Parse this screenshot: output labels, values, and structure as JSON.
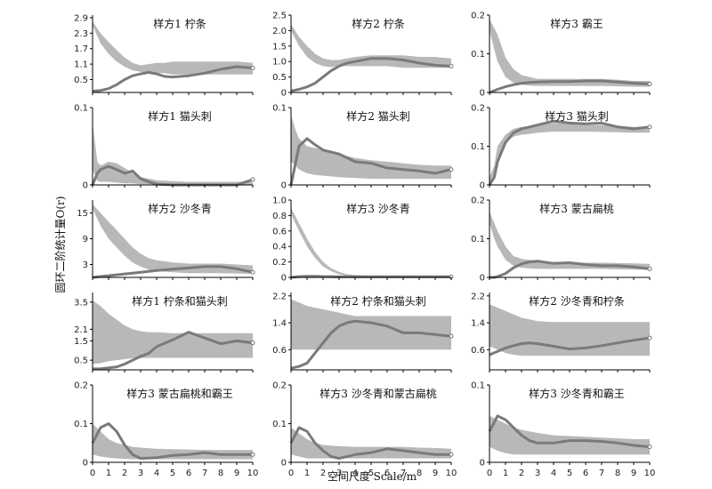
{
  "figure": {
    "xlabel": "空间尺度 Scale/m",
    "ylabel": "圆环二阶统计量O(r)"
  },
  "colors": {
    "envelope": "#b8b8b8",
    "observed": "#7a7a7a",
    "axis": "#000000"
  },
  "chart_data": [
    {
      "type": "area+line",
      "title": "样方1 柠条",
      "ylim": [
        0,
        3.0
      ],
      "yticks": [
        "2.9",
        "2.3",
        "1.7",
        "1.1",
        "0.5"
      ],
      "ytick_values": [
        2.9,
        2.3,
        1.7,
        1.1,
        0.5
      ],
      "xlim": [
        0,
        10
      ],
      "x": [
        0,
        0.5,
        1,
        1.5,
        2,
        2.5,
        3,
        3.5,
        4,
        4.5,
        5,
        6,
        7,
        8,
        9,
        10
      ],
      "upper": [
        2.75,
        2.3,
        1.95,
        1.65,
        1.35,
        1.15,
        1.05,
        1.1,
        1.15,
        1.15,
        1.2,
        1.2,
        1.2,
        1.2,
        1.2,
        1.15
      ],
      "lower": [
        2.6,
        1.9,
        1.5,
        1.2,
        1.0,
        0.85,
        0.8,
        0.75,
        0.75,
        0.75,
        0.7,
        0.7,
        0.7,
        0.7,
        0.7,
        0.7
      ],
      "observed": [
        0.05,
        0.08,
        0.15,
        0.3,
        0.5,
        0.65,
        0.72,
        0.78,
        0.72,
        0.62,
        0.6,
        0.65,
        0.75,
        0.9,
        1.0,
        0.95
      ]
    },
    {
      "type": "area+line",
      "title": "样方2 柠条",
      "ylim": [
        0,
        2.5
      ],
      "yticks": [
        "2.5",
        "2.0",
        "1.5",
        "1.0",
        "0.5",
        "0"
      ],
      "ytick_values": [
        2.5,
        2.0,
        1.5,
        1.0,
        0.5,
        0
      ],
      "xlim": [
        0,
        10
      ],
      "x": [
        0,
        0.5,
        1,
        1.5,
        2,
        2.5,
        3,
        3.5,
        4,
        5,
        6,
        7,
        8,
        9,
        10
      ],
      "upper": [
        2.2,
        1.8,
        1.5,
        1.25,
        1.1,
        1.05,
        1.05,
        1.1,
        1.15,
        1.2,
        1.2,
        1.2,
        1.15,
        1.15,
        1.1
      ],
      "lower": [
        2.0,
        1.5,
        1.15,
        0.95,
        0.85,
        0.82,
        0.85,
        0.85,
        0.85,
        0.85,
        0.85,
        0.8,
        0.8,
        0.8,
        0.8
      ],
      "observed": [
        0.05,
        0.1,
        0.18,
        0.3,
        0.5,
        0.7,
        0.85,
        0.95,
        1.0,
        1.1,
        1.1,
        1.05,
        0.95,
        0.88,
        0.85
      ]
    },
    {
      "type": "area+line",
      "title": "样方3 霸王",
      "ylim": [
        0,
        0.2
      ],
      "yticks": [
        "0.2",
        "0.1",
        "0"
      ],
      "ytick_values": [
        0.2,
        0.1,
        0
      ],
      "xlim": [
        0,
        10
      ],
      "x": [
        0,
        0.5,
        1,
        1.5,
        2,
        2.5,
        3,
        4,
        5,
        6,
        7,
        8,
        9,
        10
      ],
      "upper": [
        0.19,
        0.15,
        0.09,
        0.06,
        0.045,
        0.04,
        0.035,
        0.035,
        0.035,
        0.035,
        0.035,
        0.033,
        0.03,
        0.03
      ],
      "lower": [
        0.16,
        0.08,
        0.04,
        0.025,
        0.02,
        0.018,
        0.017,
        0.017,
        0.017,
        0.017,
        0.017,
        0.016,
        0.015,
        0.015
      ],
      "observed": [
        0.0,
        0.008,
        0.015,
        0.02,
        0.024,
        0.026,
        0.027,
        0.028,
        0.028,
        0.03,
        0.03,
        0.027,
        0.024,
        0.022
      ]
    },
    {
      "type": "area+line",
      "title": "样方1 猫头刺",
      "ylim": [
        0,
        0.1
      ],
      "yticks": [
        "0.1",
        "0"
      ],
      "ytick_values": [
        0.1,
        0
      ],
      "xlim": [
        0,
        10
      ],
      "x": [
        0,
        0.3,
        0.5,
        1,
        1.5,
        2,
        2.5,
        3,
        3.5,
        4,
        5,
        6,
        7,
        8,
        9,
        10
      ],
      "upper": [
        0.08,
        0.03,
        0.025,
        0.03,
        0.028,
        0.022,
        0.015,
        0.01,
        0.008,
        0.006,
        0.005,
        0.004,
        0.004,
        0.004,
        0.004,
        0.004
      ],
      "lower": [
        0.02,
        0.005,
        0.004,
        0.004,
        0.003,
        0.002,
        0.002,
        0.001,
        0.001,
        0.001,
        0.001,
        0.0,
        0.0,
        0.0,
        0.0,
        0.0
      ],
      "observed": [
        0.0,
        0.015,
        0.02,
        0.024,
        0.02,
        0.015,
        0.018,
        0.008,
        0.004,
        0.001,
        0.0,
        0.0,
        0.0,
        0.0,
        0.0,
        0.007
      ]
    },
    {
      "type": "area+line",
      "title": "样方2 猫头刺",
      "ylim": [
        0,
        0.1
      ],
      "yticks": [
        "0.1",
        "0"
      ],
      "ytick_values": [
        0.1,
        0
      ],
      "xlim": [
        0,
        10
      ],
      "x": [
        0,
        0.3,
        0.5,
        1,
        1.5,
        2,
        3,
        4,
        5,
        6,
        7,
        8,
        9,
        10
      ],
      "upper": [
        0.09,
        0.07,
        0.06,
        0.05,
        0.048,
        0.045,
        0.04,
        0.035,
        0.032,
        0.03,
        0.028,
        0.026,
        0.025,
        0.025
      ],
      "lower": [
        0.03,
        0.025,
        0.02,
        0.015,
        0.013,
        0.012,
        0.01,
        0.009,
        0.008,
        0.008,
        0.008,
        0.008,
        0.008,
        0.008
      ],
      "observed": [
        0.0,
        0.03,
        0.05,
        0.06,
        0.052,
        0.045,
        0.04,
        0.03,
        0.028,
        0.022,
        0.02,
        0.018,
        0.015,
        0.02
      ]
    },
    {
      "type": "area+line",
      "title": "样方3 猫头刺",
      "ylim": [
        0,
        0.2
      ],
      "yticks": [
        "0.2",
        "0.1",
        "0"
      ],
      "ytick_values": [
        0.2,
        0.1,
        0
      ],
      "xlim": [
        0,
        10
      ],
      "x": [
        0,
        0.3,
        0.5,
        1,
        1.5,
        2,
        2.5,
        3,
        4,
        5,
        6,
        7,
        8,
        9,
        10
      ],
      "upper": [
        0.02,
        0.05,
        0.1,
        0.13,
        0.145,
        0.15,
        0.152,
        0.155,
        0.16,
        0.158,
        0.155,
        0.155,
        0.152,
        0.15,
        0.15
      ],
      "lower": [
        0.0,
        0.03,
        0.07,
        0.11,
        0.125,
        0.13,
        0.132,
        0.135,
        0.138,
        0.138,
        0.138,
        0.137,
        0.136,
        0.135,
        0.135
      ],
      "observed": [
        0.0,
        0.02,
        0.06,
        0.11,
        0.135,
        0.145,
        0.15,
        0.155,
        0.165,
        0.16,
        0.158,
        0.16,
        0.15,
        0.145,
        0.15
      ]
    },
    {
      "type": "area+line",
      "title": "样方2 沙冬青",
      "ylim": [
        0,
        18
      ],
      "yticks": [
        "15",
        "9",
        "3"
      ],
      "ytick_values": [
        15,
        9,
        3
      ],
      "xlim": [
        0,
        10
      ],
      "x": [
        0,
        0.5,
        1,
        1.5,
        2,
        2.5,
        3,
        3.5,
        4,
        5,
        6,
        7,
        8,
        9,
        10
      ],
      "upper": [
        17,
        15,
        13,
        11,
        9,
        7,
        5.5,
        4.5,
        4,
        3.5,
        3.2,
        3.2,
        3.2,
        3.0,
        2.8
      ],
      "lower": [
        16,
        12,
        9,
        7,
        5,
        3.5,
        2.5,
        1.8,
        1.5,
        1.2,
        1.0,
        1.0,
        1.0,
        0.9,
        0.8
      ],
      "observed": [
        0,
        0.2,
        0.4,
        0.6,
        0.8,
        1.0,
        1.2,
        1.4,
        1.6,
        1.9,
        2.2,
        2.5,
        2.5,
        2.0,
        1.2
      ]
    },
    {
      "type": "area+line",
      "title": "样方3 沙冬青",
      "ylim": [
        0,
        1.0
      ],
      "yticks": [
        "1.0",
        "0.8",
        "0.6",
        "0.4",
        "0.2",
        "0"
      ],
      "ytick_values": [
        1.0,
        0.8,
        0.6,
        0.4,
        0.2,
        0
      ],
      "xlim": [
        0,
        10
      ],
      "x": [
        0,
        0.5,
        1,
        1.5,
        2,
        2.5,
        3,
        3.5,
        4,
        5,
        6,
        7,
        8,
        9,
        10
      ],
      "upper": [
        0.9,
        0.7,
        0.5,
        0.33,
        0.2,
        0.12,
        0.07,
        0.04,
        0.03,
        0.02,
        0.02,
        0.02,
        0.02,
        0.02,
        0.02
      ],
      "lower": [
        0.82,
        0.6,
        0.4,
        0.25,
        0.14,
        0.08,
        0.04,
        0.02,
        0.01,
        0.008,
        0.008,
        0.008,
        0.008,
        0.008,
        0.008
      ],
      "observed": [
        0.0,
        0.01,
        0.015,
        0.015,
        0.012,
        0.01,
        0.008,
        0.008,
        0.008,
        0.008,
        0.008,
        0.008,
        0.008,
        0.008,
        0.008
      ]
    },
    {
      "type": "area+line",
      "title": "样方3 蒙古扁桃",
      "ylim": [
        0,
        0.2
      ],
      "yticks": [
        "0.2",
        "0.1",
        "0"
      ],
      "ytick_values": [
        0.2,
        0.1,
        0
      ],
      "xlim": [
        0,
        10
      ],
      "x": [
        0,
        0.3,
        0.5,
        1,
        1.5,
        2,
        2.5,
        3,
        4,
        5,
        6,
        7,
        8,
        9,
        10
      ],
      "upper": [
        0.17,
        0.14,
        0.12,
        0.08,
        0.055,
        0.048,
        0.045,
        0.043,
        0.04,
        0.04,
        0.038,
        0.038,
        0.037,
        0.036,
        0.035
      ],
      "lower": [
        0.14,
        0.1,
        0.08,
        0.045,
        0.03,
        0.025,
        0.023,
        0.022,
        0.022,
        0.022,
        0.022,
        0.022,
        0.021,
        0.02,
        0.02
      ],
      "observed": [
        0.0,
        0.0,
        0.002,
        0.01,
        0.025,
        0.035,
        0.04,
        0.042,
        0.036,
        0.038,
        0.033,
        0.03,
        0.03,
        0.027,
        0.022
      ]
    },
    {
      "type": "area+line",
      "title": "样方1 柠条和猫头刺",
      "ylim": [
        0,
        4.0
      ],
      "yticks": [
        "3.5",
        "2.1",
        "1.5",
        "0.5"
      ],
      "ytick_values": [
        3.5,
        2.1,
        1.5,
        0.5
      ],
      "xlim": [
        0,
        10
      ],
      "x": [
        0,
        0.5,
        1,
        1.5,
        2,
        2.5,
        3,
        3.5,
        4,
        5,
        6,
        7,
        8,
        9,
        10
      ],
      "upper": [
        3.6,
        3.3,
        2.9,
        2.6,
        2.3,
        2.1,
        2.0,
        1.95,
        1.95,
        1.9,
        1.9,
        1.9,
        1.9,
        1.9,
        1.9
      ],
      "lower": [
        0.3,
        0.35,
        0.45,
        0.5,
        0.55,
        0.6,
        0.6,
        0.62,
        0.62,
        0.62,
        0.62,
        0.62,
        0.62,
        0.62,
        0.62
      ],
      "observed": [
        0.05,
        0.06,
        0.1,
        0.15,
        0.3,
        0.5,
        0.7,
        0.85,
        1.2,
        1.55,
        1.95,
        1.65,
        1.35,
        1.5,
        1.4
      ]
    },
    {
      "type": "area+line",
      "title": "样方2 柠条和猫头刺",
      "ylim": [
        0,
        2.3
      ],
      "yticks": [
        "2.2",
        "1.4",
        "0.6"
      ],
      "ytick_values": [
        2.2,
        1.4,
        0.6
      ],
      "xlim": [
        0,
        10
      ],
      "x": [
        0,
        0.5,
        1,
        1.5,
        2,
        2.5,
        3,
        3.5,
        4,
        5,
        6,
        7,
        8,
        9,
        10
      ],
      "upper": [
        2.1,
        2.0,
        1.9,
        1.85,
        1.8,
        1.75,
        1.7,
        1.65,
        1.6,
        1.6,
        1.6,
        1.6,
        1.6,
        1.6,
        1.6
      ],
      "lower": [
        0.6,
        0.6,
        0.6,
        0.6,
        0.6,
        0.6,
        0.6,
        0.6,
        0.6,
        0.6,
        0.6,
        0.6,
        0.6,
        0.6,
        0.6
      ],
      "observed": [
        0.05,
        0.1,
        0.2,
        0.5,
        0.8,
        1.1,
        1.3,
        1.4,
        1.45,
        1.4,
        1.3,
        1.1,
        1.1,
        1.05,
        1.0
      ]
    },
    {
      "type": "area+line",
      "title": "样方2 沙冬青和柠条",
      "ylim": [
        0,
        2.3
      ],
      "yticks": [
        "2.2",
        "1.4",
        "0.6"
      ],
      "ytick_values": [
        2.2,
        1.4,
        0.6
      ],
      "xlim": [
        0,
        10
      ],
      "x": [
        0,
        0.5,
        1,
        1.5,
        2,
        2.5,
        3,
        4,
        5,
        6,
        7,
        8,
        9,
        10
      ],
      "upper": [
        1.95,
        1.85,
        1.75,
        1.65,
        1.55,
        1.5,
        1.45,
        1.42,
        1.42,
        1.42,
        1.42,
        1.42,
        1.42,
        1.42
      ],
      "lower": [
        0.7,
        0.6,
        0.5,
        0.45,
        0.42,
        0.42,
        0.42,
        0.42,
        0.42,
        0.42,
        0.42,
        0.42,
        0.42,
        0.42
      ],
      "observed": [
        0.45,
        0.55,
        0.65,
        0.72,
        0.78,
        0.8,
        0.78,
        0.7,
        0.62,
        0.65,
        0.72,
        0.8,
        0.88,
        0.95
      ]
    },
    {
      "type": "area+line",
      "title": "样方3 蒙古扁桃和霸王",
      "ylim": [
        0,
        0.2
      ],
      "yticks": [
        "0.2",
        "0.1",
        "0"
      ],
      "ytick_values": [
        0.2,
        0.1,
        0
      ],
      "xlim": [
        0,
        10
      ],
      "x": [
        0,
        0.5,
        1,
        1.5,
        2,
        2.5,
        3,
        4,
        5,
        6,
        7,
        8,
        9,
        10
      ],
      "upper": [
        0.1,
        0.08,
        0.06,
        0.05,
        0.045,
        0.04,
        0.038,
        0.035,
        0.034,
        0.033,
        0.032,
        0.032,
        0.032,
        0.032
      ],
      "lower": [
        0.02,
        0.015,
        0.012,
        0.01,
        0.009,
        0.008,
        0.008,
        0.008,
        0.008,
        0.008,
        0.008,
        0.008,
        0.008,
        0.008
      ],
      "observed": [
        0.05,
        0.09,
        0.1,
        0.08,
        0.045,
        0.02,
        0.01,
        0.012,
        0.018,
        0.02,
        0.025,
        0.02,
        0.02,
        0.02
      ]
    },
    {
      "type": "area+line",
      "title": "样方3 沙冬青和蒙古扁桃",
      "ylim": [
        0,
        0.2
      ],
      "yticks": [
        "0.2",
        "0.1",
        "0"
      ],
      "ytick_values": [
        0.2,
        0.1,
        0
      ],
      "xlim": [
        0,
        10
      ],
      "x": [
        0,
        0.5,
        1,
        1.5,
        2,
        2.5,
        3,
        4,
        5,
        6,
        7,
        8,
        9,
        10
      ],
      "upper": [
        0.09,
        0.075,
        0.06,
        0.05,
        0.045,
        0.043,
        0.042,
        0.04,
        0.04,
        0.04,
        0.04,
        0.038,
        0.037,
        0.035
      ],
      "lower": [
        0.02,
        0.015,
        0.01,
        0.01,
        0.01,
        0.01,
        0.01,
        0.01,
        0.01,
        0.01,
        0.01,
        0.01,
        0.01,
        0.01
      ],
      "observed": [
        0.05,
        0.09,
        0.08,
        0.05,
        0.03,
        0.015,
        0.01,
        0.02,
        0.025,
        0.035,
        0.03,
        0.025,
        0.02,
        0.02
      ]
    },
    {
      "type": "area+line",
      "title": "样方3 沙冬青和霸王",
      "ylim": [
        0,
        0.1
      ],
      "yticks": [
        "0.1",
        "0"
      ],
      "ytick_values": [
        0.1,
        0
      ],
      "xlim": [
        0,
        10
      ],
      "x": [
        0,
        0.5,
        1,
        1.5,
        2,
        2.5,
        3,
        4,
        5,
        6,
        7,
        8,
        9,
        10
      ],
      "upper": [
        0.06,
        0.055,
        0.05,
        0.045,
        0.042,
        0.04,
        0.038,
        0.035,
        0.034,
        0.033,
        0.032,
        0.031,
        0.03,
        0.03
      ],
      "lower": [
        0.02,
        0.015,
        0.012,
        0.01,
        0.01,
        0.01,
        0.01,
        0.01,
        0.01,
        0.01,
        0.01,
        0.01,
        0.01,
        0.01
      ],
      "observed": [
        0.04,
        0.06,
        0.055,
        0.045,
        0.035,
        0.028,
        0.025,
        0.025,
        0.028,
        0.028,
        0.027,
        0.025,
        0.022,
        0.02
      ]
    }
  ],
  "shared_xticks": [
    "0",
    "1",
    "2",
    "3",
    "4",
    "5",
    "6",
    "7",
    "8",
    "9",
    "10"
  ]
}
